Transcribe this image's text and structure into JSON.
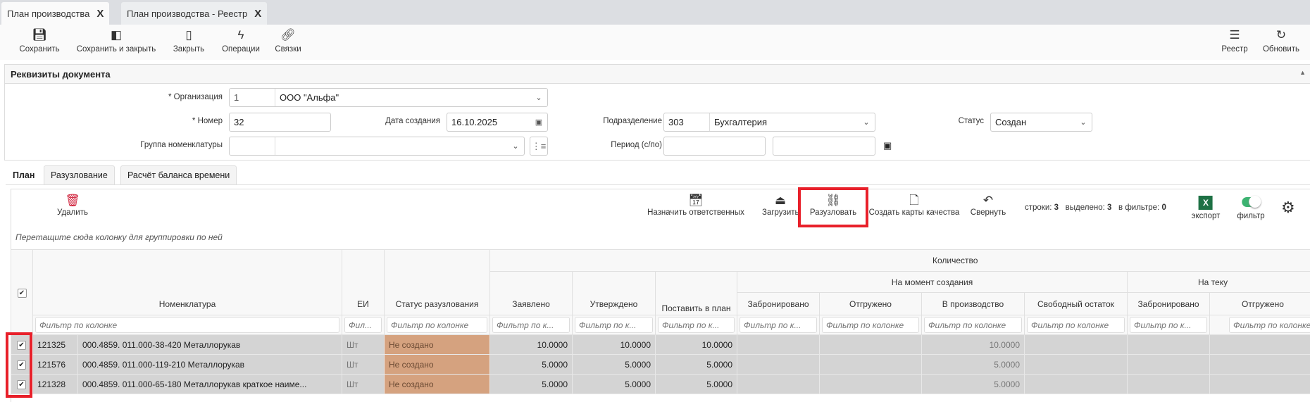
{
  "tabs": [
    {
      "label": "План производства",
      "close": "X"
    },
    {
      "label": "План производства - Реестр",
      "close": "X"
    }
  ],
  "toolbar": {
    "left": [
      {
        "label": "Сохранить",
        "icon": "save-icon"
      },
      {
        "label": "Сохранить и закрыть",
        "icon": "save-close-icon"
      },
      {
        "label": "Закрыть",
        "icon": "door-icon"
      },
      {
        "label": "Операции",
        "icon": "lightning-icon"
      },
      {
        "label": "Связки",
        "icon": "link-icon"
      }
    ],
    "right": [
      {
        "label": "Реестр",
        "icon": "registry-icon"
      },
      {
        "label": "Обновить",
        "icon": "refresh-icon"
      }
    ]
  },
  "section": {
    "title": "Реквизиты документа",
    "org": {
      "label": "* Организация",
      "code": "1",
      "value": "ООО \"Альфа\""
    },
    "number": {
      "label": "* Номер",
      "value": "32"
    },
    "date": {
      "label": "Дата создания",
      "value": "16.10.2025"
    },
    "group": {
      "label": "Группа номенклатуры",
      "code": "",
      "value": ""
    },
    "dept": {
      "label": "Подразделение",
      "code": "303",
      "value": "Бухгалтерия"
    },
    "period": {
      "label": "Период (с/по)",
      "from": "",
      "to": ""
    },
    "status": {
      "label": "Статус",
      "value": "Создан"
    }
  },
  "subtabs": [
    "План",
    "Разузлование",
    "Расчёт баланса времени"
  ],
  "grid_toolbar": {
    "delete": "Удалить",
    "assign": "Назначить ответственных",
    "load": "Загрузить",
    "explode": "Разузловать",
    "quality": "Создать карты качества",
    "collapse": "Свернуть",
    "rows_label": "строки:",
    "rows": "3",
    "selected_label": "выделено:",
    "selected": "3",
    "filtered_label": "в фильтре:",
    "filtered": "0",
    "export": "экспорт",
    "filter": "фильтр",
    "filter_on": true,
    "group_hint": "Перетащите сюда колонку для группировки по ней"
  },
  "columns": {
    "qty": "Количество",
    "at_creation": "На момент создания",
    "current": "На теку",
    "name": "Номенклатура",
    "unit": "ЕИ",
    "status": "Статус разузлования",
    "declared": "Заявлено",
    "approved": "Утверждено",
    "to_plan": "Поставить в план",
    "reserved": "Забронировано",
    "shipped": "Отгружено",
    "in_prod": "В производство",
    "free": "Свободный остаток",
    "reserved2": "Забронировано",
    "shipped2": "Отгружено"
  },
  "filters": {
    "full": "Фильтр по колонке",
    "short": "Фильтр по к...",
    "tiny": "Фил..."
  },
  "rows": [
    {
      "checked": true,
      "id": "121325",
      "name": "000.4859. 011.000-38-420 Металлорукав",
      "unit": "Шт",
      "status": "Не создано",
      "declared": "10.0000",
      "approved": "10.0000",
      "to_plan": "10.0000",
      "in_prod": "10.0000"
    },
    {
      "checked": true,
      "id": "121576",
      "name": "000.4859. 011.000-119-210 Металлорукав",
      "unit": "Шт",
      "status": "Не создано",
      "declared": "5.0000",
      "approved": "5.0000",
      "to_plan": "5.0000",
      "in_prod": "5.0000"
    },
    {
      "checked": true,
      "id": "121328",
      "name": "000.4859. 011.000-65-180 Металлорукав краткое наиме...",
      "unit": "Шт",
      "status": "Не создано",
      "declared": "5.0000",
      "approved": "5.0000",
      "to_plan": "5.0000",
      "in_prod": "5.0000"
    }
  ],
  "colors": {
    "highlight": "#e8202a",
    "status_cell": "#d5a27f",
    "row_bg": "#d4d4d4",
    "delete": "#d0203a",
    "excel": "#1e7145",
    "toggle": "#3cb371"
  }
}
